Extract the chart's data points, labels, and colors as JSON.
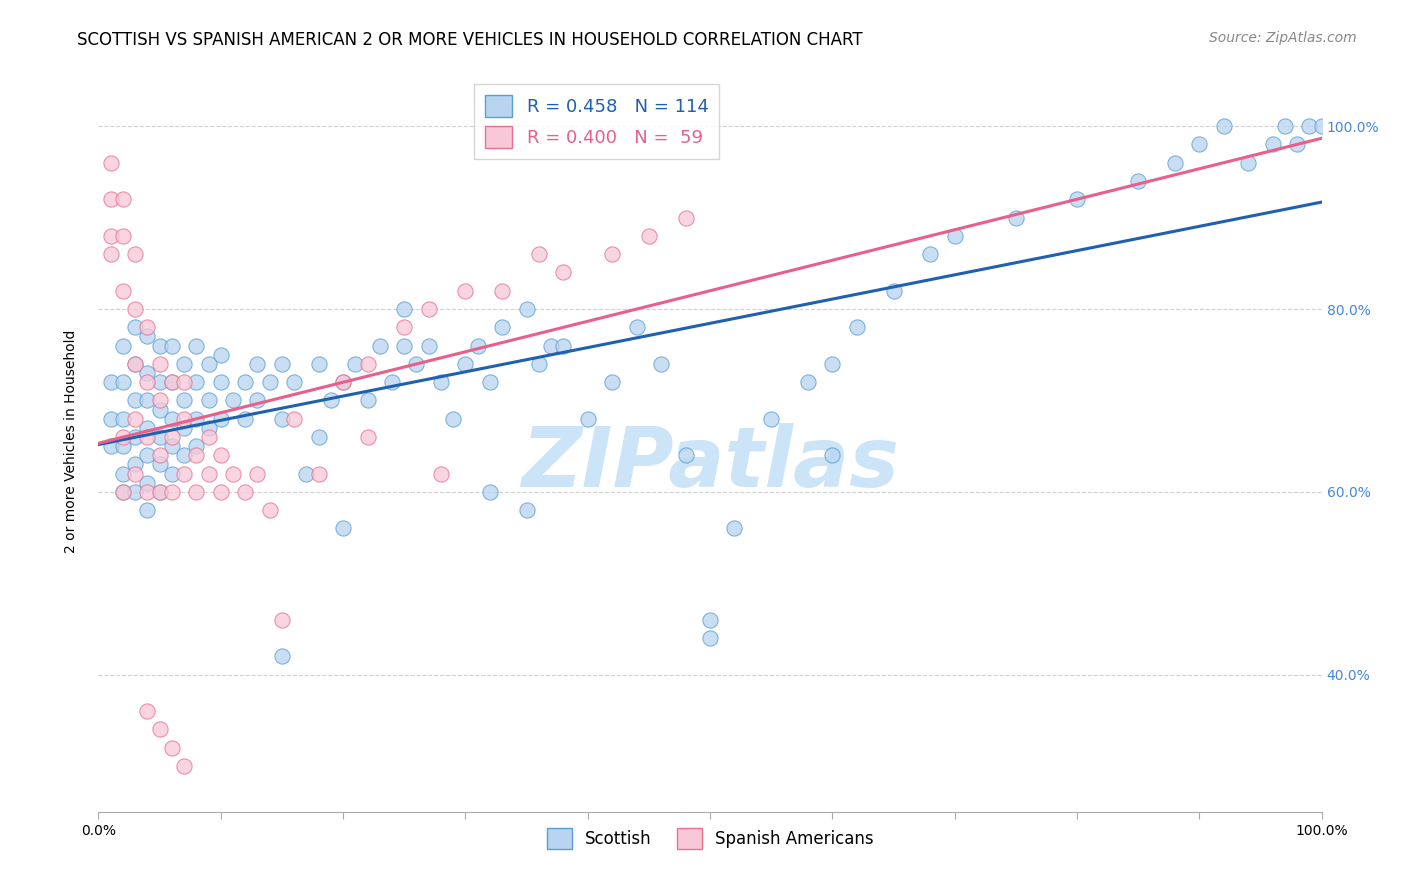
{
  "title": "SCOTTISH VS SPANISH AMERICAN 2 OR MORE VEHICLES IN HOUSEHOLD CORRELATION CHART",
  "source": "Source: ZipAtlas.com",
  "ylabel": "2 or more Vehicles in Household",
  "ytick_labels": [
    "40.0%",
    "60.0%",
    "80.0%",
    "100.0%"
  ],
  "yticks": [
    0.4,
    0.6,
    0.8,
    1.0
  ],
  "watermark": "ZIPatlas",
  "legend_label_scottish": "Scottish",
  "legend_label_spanish": "Spanish Americans",
  "scatter_blue_fill": "#b8d4f0",
  "scatter_blue_edge": "#5a9fd4",
  "scatter_pink_fill": "#f8c8d8",
  "scatter_pink_edge": "#e87090",
  "scatter_size": 120,
  "scatter_alpha": 0.75,
  "line_blue_color": "#2060b0",
  "line_pink_color": "#e8608a",
  "line_width": 2.2,
  "background_color": "#ffffff",
  "grid_color": "#cccccc",
  "title_fontsize": 12,
  "source_fontsize": 10,
  "axis_label_fontsize": 10,
  "tick_label_fontsize": 10,
  "right_tick_color": "#4488dd",
  "watermark_color": "#cce4f8",
  "watermark_fontsize": 60,
  "xlim": [
    0.0,
    1.0
  ],
  "ylim": [
    0.25,
    1.06
  ],
  "blue_x": [
    0.01,
    0.01,
    0.01,
    0.02,
    0.02,
    0.02,
    0.02,
    0.02,
    0.02,
    0.03,
    0.03,
    0.03,
    0.03,
    0.03,
    0.03,
    0.04,
    0.04,
    0.04,
    0.04,
    0.04,
    0.04,
    0.04,
    0.05,
    0.05,
    0.05,
    0.05,
    0.05,
    0.05,
    0.06,
    0.06,
    0.06,
    0.06,
    0.06,
    0.07,
    0.07,
    0.07,
    0.07,
    0.08,
    0.08,
    0.08,
    0.08,
    0.09,
    0.09,
    0.09,
    0.1,
    0.1,
    0.1,
    0.11,
    0.12,
    0.12,
    0.13,
    0.13,
    0.14,
    0.15,
    0.15,
    0.16,
    0.17,
    0.18,
    0.18,
    0.19,
    0.2,
    0.21,
    0.22,
    0.23,
    0.24,
    0.25,
    0.25,
    0.26,
    0.27,
    0.28,
    0.29,
    0.3,
    0.31,
    0.32,
    0.33,
    0.35,
    0.36,
    0.37,
    0.38,
    0.4,
    0.42,
    0.44,
    0.46,
    0.48,
    0.5,
    0.52,
    0.55,
    0.58,
    0.6,
    0.62,
    0.65,
    0.68,
    0.7,
    0.75,
    0.8,
    0.85,
    0.88,
    0.9,
    0.92,
    0.94,
    0.96,
    0.97,
    0.98,
    0.99,
    1.0,
    0.35,
    0.5,
    0.6,
    0.32,
    0.2,
    0.15
  ],
  "blue_y": [
    0.65,
    0.68,
    0.72,
    0.6,
    0.62,
    0.65,
    0.68,
    0.72,
    0.76,
    0.6,
    0.63,
    0.66,
    0.7,
    0.74,
    0.78,
    0.58,
    0.61,
    0.64,
    0.67,
    0.7,
    0.73,
    0.77,
    0.6,
    0.63,
    0.66,
    0.69,
    0.72,
    0.76,
    0.62,
    0.65,
    0.68,
    0.72,
    0.76,
    0.64,
    0.67,
    0.7,
    0.74,
    0.65,
    0.68,
    0.72,
    0.76,
    0.67,
    0.7,
    0.74,
    0.68,
    0.72,
    0.75,
    0.7,
    0.68,
    0.72,
    0.7,
    0.74,
    0.72,
    0.68,
    0.74,
    0.72,
    0.62,
    0.66,
    0.74,
    0.7,
    0.72,
    0.74,
    0.7,
    0.76,
    0.72,
    0.76,
    0.8,
    0.74,
    0.76,
    0.72,
    0.68,
    0.74,
    0.76,
    0.72,
    0.78,
    0.8,
    0.74,
    0.76,
    0.76,
    0.68,
    0.72,
    0.78,
    0.74,
    0.64,
    0.44,
    0.56,
    0.68,
    0.72,
    0.74,
    0.78,
    0.82,
    0.86,
    0.88,
    0.9,
    0.92,
    0.94,
    0.96,
    0.98,
    1.0,
    0.96,
    0.98,
    1.0,
    0.98,
    1.0,
    1.0,
    0.58,
    0.46,
    0.64,
    0.6,
    0.56,
    0.42
  ],
  "pink_x": [
    0.01,
    0.01,
    0.01,
    0.01,
    0.02,
    0.02,
    0.02,
    0.02,
    0.02,
    0.03,
    0.03,
    0.03,
    0.03,
    0.03,
    0.04,
    0.04,
    0.04,
    0.04,
    0.05,
    0.05,
    0.05,
    0.05,
    0.06,
    0.06,
    0.06,
    0.07,
    0.07,
    0.07,
    0.08,
    0.08,
    0.09,
    0.09,
    0.1,
    0.1,
    0.11,
    0.12,
    0.13,
    0.14,
    0.15,
    0.16,
    0.18,
    0.2,
    0.22,
    0.25,
    0.27,
    0.3,
    0.33,
    0.36,
    0.38,
    0.42,
    0.45,
    0.48,
    0.22,
    0.28,
    0.04,
    0.05,
    0.06,
    0.07
  ],
  "pink_y": [
    0.86,
    0.88,
    0.92,
    0.96,
    0.6,
    0.66,
    0.82,
    0.88,
    0.92,
    0.62,
    0.68,
    0.74,
    0.8,
    0.86,
    0.6,
    0.66,
    0.72,
    0.78,
    0.6,
    0.64,
    0.7,
    0.74,
    0.6,
    0.66,
    0.72,
    0.62,
    0.68,
    0.72,
    0.6,
    0.64,
    0.62,
    0.66,
    0.6,
    0.64,
    0.62,
    0.6,
    0.62,
    0.58,
    0.46,
    0.68,
    0.62,
    0.72,
    0.74,
    0.78,
    0.8,
    0.82,
    0.82,
    0.86,
    0.84,
    0.86,
    0.88,
    0.9,
    0.66,
    0.62,
    0.36,
    0.34,
    0.32,
    0.3
  ]
}
